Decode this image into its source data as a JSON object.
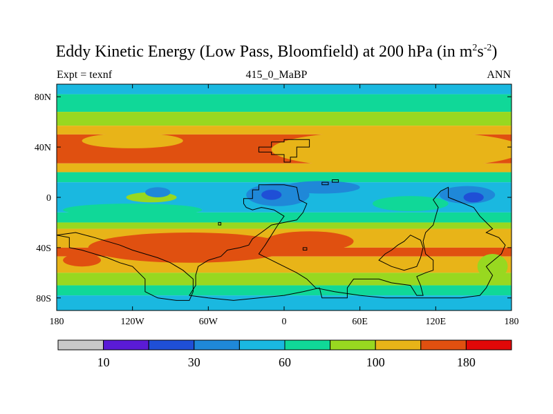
{
  "title": {
    "main": "Eddy Kinetic Energy (Low Pass, Bloomfield) at 200 hPa (in m",
    "sup1": "2",
    "mid": "s",
    "sup2": "-2",
    "close": ")"
  },
  "subtitle_left": "Expt = texnf",
  "subtitle_center": "415_0_MaBP",
  "subtitle_right": "ANN",
  "chart_data": {
    "type": "heatmap",
    "title": "Eddy Kinetic Energy (Low Pass, Bloomfield) at 200 hPa (in m^2 s^-2)",
    "xlim": [
      -180,
      180
    ],
    "ylim": [
      -90,
      90
    ],
    "x_ticks": [
      {
        "value": -180,
        "label": "180"
      },
      {
        "value": -120,
        "label": "120W"
      },
      {
        "value": -60,
        "label": "60W"
      },
      {
        "value": 0,
        "label": "0"
      },
      {
        "value": 60,
        "label": "60E"
      },
      {
        "value": 120,
        "label": "120E"
      },
      {
        "value": 180,
        "label": "180"
      }
    ],
    "y_ticks": [
      {
        "value": 80,
        "label": "80N"
      },
      {
        "value": 40,
        "label": "40N"
      },
      {
        "value": 0,
        "label": "0"
      },
      {
        "value": -40,
        "label": "40S"
      },
      {
        "value": -80,
        "label": "80S"
      }
    ],
    "colorbar": {
      "colors": [
        "#c8c8c8",
        "#5a1bd6",
        "#1f4fd6",
        "#1f88d8",
        "#1ab8e0",
        "#10d898",
        "#98d820",
        "#e8b418",
        "#e05010",
        "#e00808"
      ],
      "labels": [
        {
          "after_box": 1,
          "label": "10"
        },
        {
          "after_box": 3,
          "label": "30"
        },
        {
          "after_box": 5,
          "label": "60"
        },
        {
          "after_box": 7,
          "label": "100"
        },
        {
          "after_box": 9,
          "label": "180"
        }
      ]
    },
    "latitude_bands": [
      {
        "lat_top": 90,
        "lat_bottom": 82,
        "level": 4
      },
      {
        "lat_top": 82,
        "lat_bottom": 68,
        "level": 5
      },
      {
        "lat_top": 68,
        "lat_bottom": 57,
        "level": 6
      },
      {
        "lat_top": 57,
        "lat_bottom": 50,
        "level": 7
      },
      {
        "lat_top": 50,
        "lat_bottom": 27,
        "level": 8
      },
      {
        "lat_top": 27,
        "lat_bottom": 20,
        "level": 7
      },
      {
        "lat_top": 20,
        "lat_bottom": 12,
        "level": 5
      },
      {
        "lat_top": 12,
        "lat_bottom": -12,
        "level": 4
      },
      {
        "lat_top": -12,
        "lat_bottom": -20,
        "level": 5
      },
      {
        "lat_top": -20,
        "lat_bottom": -25,
        "level": 6
      },
      {
        "lat_top": -25,
        "lat_bottom": -40,
        "level": 7
      },
      {
        "lat_top": -40,
        "lat_bottom": -47,
        "level": 8
      },
      {
        "lat_top": -47,
        "lat_bottom": -60,
        "level": 7
      },
      {
        "lat_top": -60,
        "lat_bottom": -70,
        "level": 6
      },
      {
        "lat_top": -70,
        "lat_bottom": -78,
        "level": 5
      },
      {
        "lat_top": -78,
        "lat_bottom": -90,
        "level": 4
      }
    ],
    "features": [
      {
        "lon": 90,
        "lat": 38,
        "rlon": 100,
        "rlat": 15,
        "level": 7
      },
      {
        "lon": -120,
        "lat": 45,
        "rlon": 40,
        "rlat": 6,
        "level": 7
      },
      {
        "lon": -75,
        "lat": -40,
        "rlon": 80,
        "rlat": 12,
        "level": 8
      },
      {
        "lon": 20,
        "lat": -35,
        "rlon": 35,
        "rlat": 8,
        "level": 8
      },
      {
        "lon": -105,
        "lat": 0,
        "rlon": 20,
        "rlat": 4,
        "level": 6
      },
      {
        "lon": -120,
        "lat": -10,
        "rlon": 55,
        "rlat": 5,
        "level": 5
      },
      {
        "lon": 100,
        "lat": -5,
        "rlon": 30,
        "rlat": 6,
        "level": 5
      },
      {
        "lon": -5,
        "lat": 2,
        "rlon": 25,
        "rlat": 9,
        "level": 3
      },
      {
        "lon": -10,
        "lat": 2,
        "rlon": 8,
        "rlat": 4,
        "level": 2
      },
      {
        "lon": 145,
        "lat": 2,
        "rlon": 22,
        "rlat": 7,
        "level": 3
      },
      {
        "lon": 150,
        "lat": 0,
        "rlon": 8,
        "rlat": 4,
        "level": 2
      },
      {
        "lon": 30,
        "lat": 8,
        "rlon": 30,
        "rlat": 5,
        "level": 3
      },
      {
        "lon": -100,
        "lat": 4,
        "rlon": 10,
        "rlat": 4,
        "level": 3
      },
      {
        "lon": 165,
        "lat": -55,
        "rlon": 12,
        "rlat": 10,
        "level": 6
      },
      {
        "lon": -160,
        "lat": -50,
        "rlon": 15,
        "rlat": 5,
        "level": 8
      }
    ],
    "landmasses": [
      {
        "name": "northern-block",
        "points": [
          [
            -20,
            36
          ],
          [
            -20,
            40
          ],
          [
            -10,
            40
          ],
          [
            -10,
            44
          ],
          [
            0,
            44
          ],
          [
            0,
            46
          ],
          [
            20,
            46
          ],
          [
            20,
            40
          ],
          [
            10,
            40
          ],
          [
            10,
            32
          ],
          [
            5,
            32
          ],
          [
            5,
            28
          ],
          [
            0,
            28
          ],
          [
            0,
            34
          ],
          [
            -10,
            34
          ],
          [
            -10,
            36
          ]
        ]
      },
      {
        "name": "central-continent",
        "points": [
          [
            -32,
            -1
          ],
          [
            -25,
            -1
          ],
          [
            -25,
            6
          ],
          [
            -20,
            6
          ],
          [
            -20,
            10
          ],
          [
            -10,
            10
          ],
          [
            0,
            10
          ],
          [
            10,
            8
          ],
          [
            12,
            -2
          ],
          [
            18,
            -5
          ],
          [
            15,
            -12
          ],
          [
            10,
            -18
          ],
          [
            0,
            -20
          ],
          [
            -10,
            -22
          ],
          [
            -18,
            -28
          ],
          [
            -25,
            -33
          ],
          [
            -28,
            -38
          ],
          [
            -35,
            -40
          ],
          [
            -45,
            -42
          ],
          [
            -50,
            -47
          ],
          [
            -60,
            -50
          ],
          [
            -68,
            -55
          ],
          [
            -70,
            -62
          ],
          [
            -70,
            -70
          ],
          [
            -75,
            -78
          ],
          [
            -60,
            -80
          ],
          [
            -40,
            -82
          ],
          [
            -20,
            -80
          ],
          [
            0,
            -78
          ],
          [
            15,
            -75
          ],
          [
            28,
            -72
          ],
          [
            30,
            -80
          ],
          [
            50,
            -80
          ],
          [
            50,
            -72
          ],
          [
            55,
            -65
          ],
          [
            65,
            -65
          ],
          [
            75,
            -65
          ],
          [
            85,
            -68
          ],
          [
            100,
            -70
          ],
          [
            105,
            -78
          ],
          [
            110,
            -78
          ],
          [
            108,
            -70
          ],
          [
            105,
            -63
          ],
          [
            112,
            -60
          ],
          [
            118,
            -58
          ],
          [
            118,
            -50
          ],
          [
            112,
            -45
          ],
          [
            110,
            -35
          ],
          [
            112,
            -28
          ],
          [
            118,
            -22
          ],
          [
            120,
            -15
          ],
          [
            122,
            -8
          ],
          [
            118,
            -2
          ],
          [
            124,
            5
          ],
          [
            130,
            8
          ],
          [
            130,
            0
          ],
          [
            150,
            -8
          ],
          [
            155,
            -15
          ],
          [
            160,
            -20
          ],
          [
            165,
            -25
          ],
          [
            160,
            -28
          ],
          [
            170,
            -32
          ],
          [
            175,
            -38
          ],
          [
            172,
            -45
          ],
          [
            160,
            -55
          ],
          [
            165,
            -62
          ],
          [
            160,
            -72
          ],
          [
            155,
            -78
          ],
          [
            140,
            -80
          ],
          [
            120,
            -80
          ],
          [
            100,
            -80
          ],
          [
            80,
            -80
          ],
          [
            60,
            -78
          ],
          [
            40,
            -75
          ],
          [
            25,
            -72
          ],
          [
            18,
            -65
          ],
          [
            10,
            -60
          ],
          [
            0,
            -55
          ],
          [
            -10,
            -50
          ],
          [
            -20,
            -45
          ],
          [
            -15,
            -38
          ],
          [
            -10,
            -30
          ],
          [
            -5,
            -22
          ],
          [
            0,
            -15
          ],
          [
            -8,
            -10
          ],
          [
            -18,
            -8
          ],
          [
            -25,
            -10
          ],
          [
            -30,
            -8
          ],
          [
            -32,
            -5
          ]
        ]
      },
      {
        "name": "southwest-block",
        "points": [
          [
            -180,
            -30
          ],
          [
            -170,
            -32
          ],
          [
            -170,
            -40
          ],
          [
            -160,
            -42
          ],
          [
            -150,
            -45
          ],
          [
            -140,
            -48
          ],
          [
            -130,
            -52
          ],
          [
            -120,
            -55
          ],
          [
            -115,
            -60
          ],
          [
            -110,
            -65
          ],
          [
            -110,
            -75
          ],
          [
            -100,
            -80
          ],
          [
            -85,
            -82
          ],
          [
            -75,
            -82
          ],
          [
            -72,
            -75
          ],
          [
            -72,
            -65
          ],
          [
            -80,
            -58
          ],
          [
            -90,
            -52
          ],
          [
            -100,
            -48
          ],
          [
            -110,
            -45
          ],
          [
            -120,
            -42
          ],
          [
            -130,
            -38
          ],
          [
            -140,
            -35
          ],
          [
            -150,
            -32
          ],
          [
            -165,
            -28
          ]
        ]
      },
      {
        "name": "east-coast-block",
        "points": [
          [
            100,
            -30
          ],
          [
            95,
            -35
          ],
          [
            90,
            -38
          ],
          [
            85,
            -42
          ],
          [
            80,
            -45
          ],
          [
            75,
            -50
          ],
          [
            85,
            -55
          ],
          [
            95,
            -58
          ],
          [
            105,
            -55
          ],
          [
            108,
            -48
          ],
          [
            110,
            -40
          ],
          [
            108,
            -34
          ]
        ]
      },
      {
        "name": "small-island-a",
        "points": [
          [
            30,
            10
          ],
          [
            30,
            12
          ],
          [
            35,
            12
          ],
          [
            35,
            10
          ]
        ]
      },
      {
        "name": "small-island-b",
        "points": [
          [
            38,
            12
          ],
          [
            38,
            14
          ],
          [
            43,
            14
          ],
          [
            43,
            12
          ]
        ]
      },
      {
        "name": "small-island-c",
        "points": [
          [
            15,
            -40
          ],
          [
            15,
            -42
          ],
          [
            18,
            -42
          ],
          [
            18,
            -40
          ]
        ]
      },
      {
        "name": "small-island-d",
        "points": [
          [
            -52,
            -20
          ],
          [
            -52,
            -22
          ],
          [
            -50,
            -22
          ],
          [
            -50,
            -20
          ]
        ]
      }
    ]
  }
}
